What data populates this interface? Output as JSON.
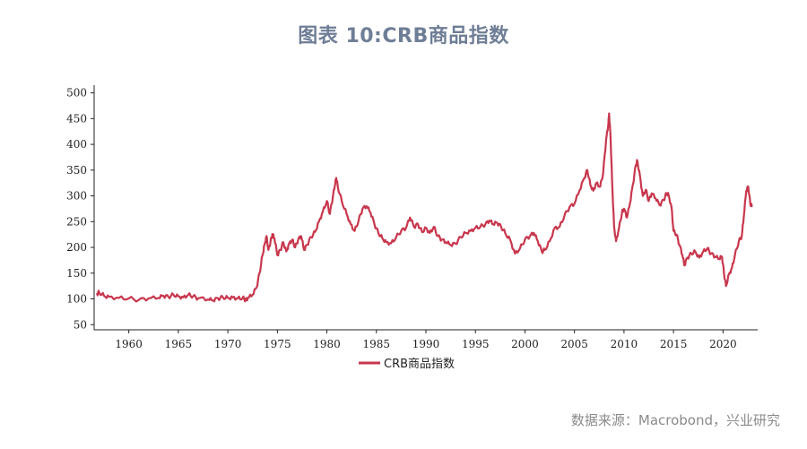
{
  "source": "数据来源：Macrobond，兴业研究",
  "colors": {
    "series": "#c8374d",
    "axis": "#222222",
    "title": "#6f7e96"
  },
  "chart_data": {
    "type": "line",
    "title": "图表 10:CRB商品指数",
    "xlabel": "",
    "ylabel": "",
    "xlim": [
      1956.5,
      2023.5
    ],
    "ylim": [
      40,
      515
    ],
    "xticks": [
      1960,
      1965,
      1970,
      1975,
      1980,
      1985,
      1990,
      1995,
      2000,
      2005,
      2010,
      2015,
      2020
    ],
    "yticks": [
      50,
      100,
      150,
      200,
      250,
      300,
      350,
      400,
      450,
      500
    ],
    "grid": false,
    "legend": "bottom-center",
    "series": [
      {
        "name": "CRB商品指数",
        "points": [
          [
            1956.8,
            110
          ],
          [
            1957.0,
            113
          ],
          [
            1957.5,
            106
          ],
          [
            1958.0,
            104
          ],
          [
            1959.0,
            102
          ],
          [
            1960.0,
            101
          ],
          [
            1961.0,
            98
          ],
          [
            1962.0,
            101
          ],
          [
            1963.0,
            102
          ],
          [
            1963.5,
            106
          ],
          [
            1964.0,
            104
          ],
          [
            1964.5,
            108
          ],
          [
            1965.0,
            105
          ],
          [
            1965.5,
            103
          ],
          [
            1966.0,
            108
          ],
          [
            1966.5,
            105
          ],
          [
            1967.0,
            101
          ],
          [
            1968.0,
            99
          ],
          [
            1968.5,
            97
          ],
          [
            1969.0,
            101
          ],
          [
            1969.5,
            103
          ],
          [
            1970.0,
            102
          ],
          [
            1970.5,
            103
          ],
          [
            1971.0,
            101
          ],
          [
            1971.5,
            102
          ],
          [
            1971.8,
            98
          ],
          [
            1972.0,
            101
          ],
          [
            1972.5,
            108
          ],
          [
            1972.9,
            122
          ],
          [
            1973.2,
            150
          ],
          [
            1973.5,
            185
          ],
          [
            1973.7,
            205
          ],
          [
            1973.9,
            222
          ],
          [
            1974.1,
            195
          ],
          [
            1974.3,
            210
          ],
          [
            1974.5,
            226
          ],
          [
            1974.7,
            218
          ],
          [
            1975.0,
            185
          ],
          [
            1975.3,
            195
          ],
          [
            1975.6,
            210
          ],
          [
            1975.9,
            192
          ],
          [
            1976.2,
            208
          ],
          [
            1976.5,
            215
          ],
          [
            1976.8,
            200
          ],
          [
            1977.1,
            215
          ],
          [
            1977.4,
            222
          ],
          [
            1977.7,
            195
          ],
          [
            1978.0,
            205
          ],
          [
            1978.4,
            220
          ],
          [
            1978.8,
            230
          ],
          [
            1979.2,
            250
          ],
          [
            1979.6,
            270
          ],
          [
            1980.0,
            290
          ],
          [
            1980.3,
            265
          ],
          [
            1980.6,
            298
          ],
          [
            1980.8,
            320
          ],
          [
            1980.95,
            335
          ],
          [
            1981.1,
            318
          ],
          [
            1981.5,
            290
          ],
          [
            1982.0,
            265
          ],
          [
            1982.4,
            245
          ],
          [
            1982.8,
            232
          ],
          [
            1983.2,
            252
          ],
          [
            1983.6,
            275
          ],
          [
            1984.0,
            280
          ],
          [
            1984.4,
            268
          ],
          [
            1984.8,
            245
          ],
          [
            1985.2,
            228
          ],
          [
            1985.6,
            218
          ],
          [
            1986.0,
            210
          ],
          [
            1986.5,
            208
          ],
          [
            1987.0,
            220
          ],
          [
            1987.5,
            232
          ],
          [
            1988.0,
            238
          ],
          [
            1988.4,
            258
          ],
          [
            1988.8,
            240
          ],
          [
            1989.2,
            245
          ],
          [
            1989.6,
            230
          ],
          [
            1990.0,
            238
          ],
          [
            1990.4,
            228
          ],
          [
            1990.8,
            240
          ],
          [
            1991.2,
            222
          ],
          [
            1991.6,
            215
          ],
          [
            1992.0,
            210
          ],
          [
            1992.5,
            205
          ],
          [
            1993.0,
            207
          ],
          [
            1993.5,
            220
          ],
          [
            1994.0,
            228
          ],
          [
            1994.5,
            232
          ],
          [
            1995.0,
            238
          ],
          [
            1995.5,
            240
          ],
          [
            1996.0,
            245
          ],
          [
            1996.4,
            252
          ],
          [
            1996.8,
            245
          ],
          [
            1997.2,
            248
          ],
          [
            1997.6,
            240
          ],
          [
            1998.0,
            228
          ],
          [
            1998.5,
            215
          ],
          [
            1999.0,
            188
          ],
          [
            1999.5,
            198
          ],
          [
            2000.0,
            215
          ],
          [
            2000.5,
            222
          ],
          [
            2000.9,
            228
          ],
          [
            2001.3,
            212
          ],
          [
            2001.7,
            192
          ],
          [
            2002.0,
            195
          ],
          [
            2002.5,
            212
          ],
          [
            2003.0,
            238
          ],
          [
            2003.5,
            240
          ],
          [
            2004.0,
            262
          ],
          [
            2004.5,
            278
          ],
          [
            2005.0,
            285
          ],
          [
            2005.5,
            310
          ],
          [
            2006.0,
            335
          ],
          [
            2006.3,
            350
          ],
          [
            2006.6,
            322
          ],
          [
            2006.9,
            310
          ],
          [
            2007.2,
            325
          ],
          [
            2007.6,
            318
          ],
          [
            2007.9,
            345
          ],
          [
            2008.2,
            410
          ],
          [
            2008.4,
            435
          ],
          [
            2008.5,
            460
          ],
          [
            2008.65,
            410
          ],
          [
            2008.8,
            330
          ],
          [
            2009.0,
            240
          ],
          [
            2009.2,
            212
          ],
          [
            2009.5,
            238
          ],
          [
            2009.8,
            268
          ],
          [
            2010.0,
            275
          ],
          [
            2010.3,
            258
          ],
          [
            2010.6,
            285
          ],
          [
            2010.9,
            322
          ],
          [
            2011.2,
            360
          ],
          [
            2011.35,
            368
          ],
          [
            2011.6,
            340
          ],
          [
            2011.9,
            300
          ],
          [
            2012.2,
            312
          ],
          [
            2012.5,
            290
          ],
          [
            2012.8,
            305
          ],
          [
            2013.2,
            295
          ],
          [
            2013.6,
            282
          ],
          [
            2014.0,
            292
          ],
          [
            2014.3,
            305
          ],
          [
            2014.5,
            302
          ],
          [
            2014.8,
            278
          ],
          [
            2015.0,
            232
          ],
          [
            2015.3,
            225
          ],
          [
            2015.6,
            205
          ],
          [
            2015.9,
            185
          ],
          [
            2016.1,
            165
          ],
          [
            2016.4,
            180
          ],
          [
            2016.8,
            188
          ],
          [
            2017.2,
            192
          ],
          [
            2017.6,
            180
          ],
          [
            2018.0,
            192
          ],
          [
            2018.4,
            198
          ],
          [
            2018.8,
            188
          ],
          [
            2019.2,
            182
          ],
          [
            2019.6,
            178
          ],
          [
            2019.9,
            182
          ],
          [
            2020.1,
            150
          ],
          [
            2020.3,
            125
          ],
          [
            2020.6,
            148
          ],
          [
            2020.9,
            160
          ],
          [
            2021.2,
            185
          ],
          [
            2021.6,
            212
          ],
          [
            2021.9,
            222
          ],
          [
            2022.1,
            260
          ],
          [
            2022.35,
            310
          ],
          [
            2022.55,
            318
          ],
          [
            2022.75,
            285
          ],
          [
            2022.9,
            280
          ]
        ]
      }
    ]
  }
}
